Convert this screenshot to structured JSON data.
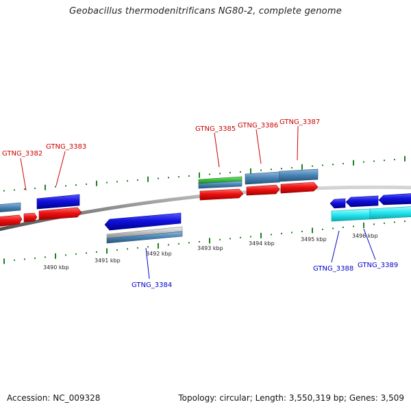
{
  "title": "Geobacillus thermodenitrificans NG80-2, complete genome",
  "footer": {
    "accession": "Accession: NC_009328",
    "topology": "Topology: circular; Length: 3,550,319 bp; Genes: 3,509"
  },
  "colors": {
    "backbone": "#8a8a8a",
    "tick": "#1e7f1e",
    "forward_label": "#cc0000",
    "reverse_label": "#0000cc",
    "red_feature": "#ee1111",
    "blue_feature": "#1111dd",
    "steelblue_feature": "#4682b4",
    "green_feature": "#33bb33",
    "grey_feature": "#bdbdbd",
    "cyan_feature": "#22e5ee"
  },
  "kbp_labels": [
    "3490 kbp",
    "3491 kbp",
    "3492 kbp",
    "3493 kbp",
    "3494 kbp",
    "3495 kbp",
    "3496 kbp"
  ],
  "genes_top": [
    "GTNG_3382",
    "GTNG_3383",
    "GTNG_3385",
    "GTNG_3386",
    "GTNG_3387"
  ],
  "genes_bottom": [
    "GTNG_3384",
    "GTNG_3388",
    "GTNG_3389"
  ]
}
